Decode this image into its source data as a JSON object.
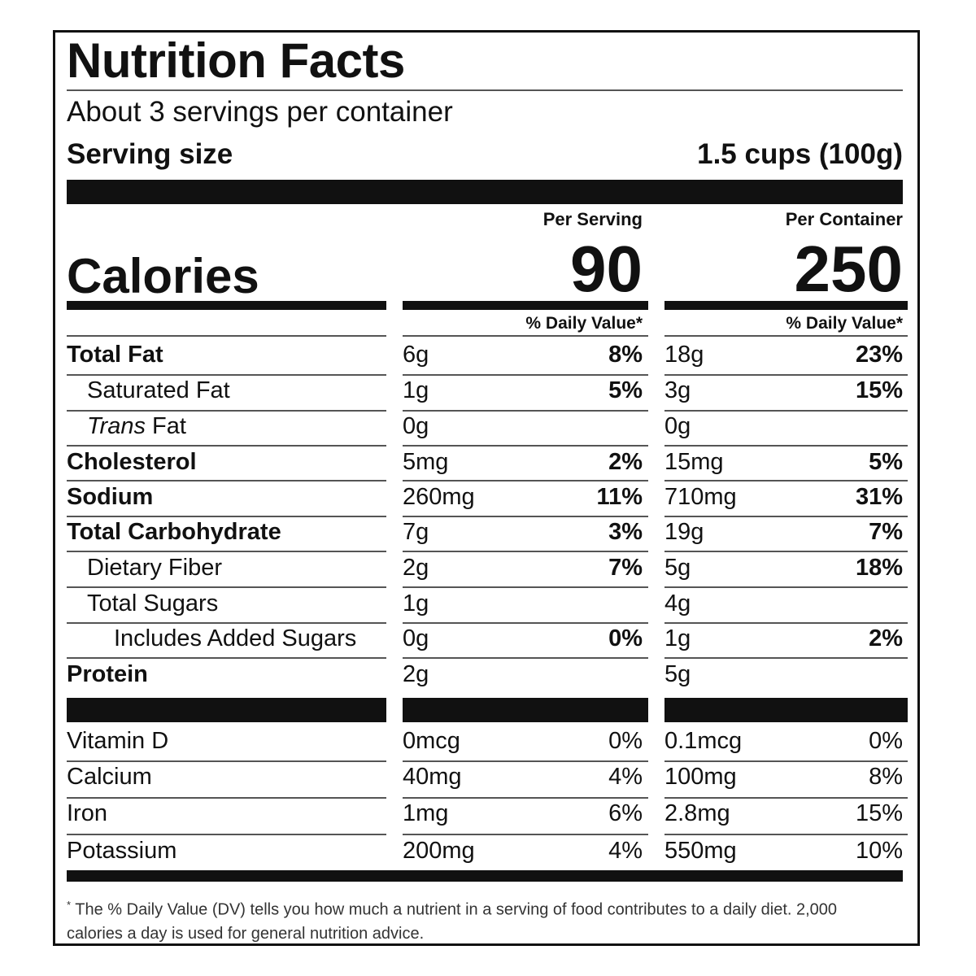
{
  "label": {
    "title": "Nutrition Facts",
    "servings_per_container": "About 3 servings per container",
    "serving_size_label": "Serving size",
    "serving_size_value": "1.5 cups (100g)",
    "columns": [
      {
        "header": "Per Serving",
        "calories": "90",
        "dv_header": "% Daily Value*"
      },
      {
        "header": "Per Container",
        "calories": "250",
        "dv_header": "% Daily Value*"
      }
    ],
    "calories_label": "Calories",
    "nutrients": [
      {
        "name": "Total Fat",
        "bold": true,
        "indent": 0,
        "values": [
          {
            "amount": "6g",
            "pct": "8%"
          },
          {
            "amount": "18g",
            "pct": "23%"
          }
        ]
      },
      {
        "name": "Saturated Fat",
        "bold": false,
        "indent": 1,
        "values": [
          {
            "amount": "1g",
            "pct": "5%"
          },
          {
            "amount": "3g",
            "pct": "15%"
          }
        ]
      },
      {
        "name_italic": "Trans",
        "name": " Fat",
        "bold": false,
        "indent": 1,
        "values": [
          {
            "amount": "0g",
            "pct": ""
          },
          {
            "amount": "0g",
            "pct": ""
          }
        ]
      },
      {
        "name": "Cholesterol",
        "bold": true,
        "indent": 0,
        "values": [
          {
            "amount": "5mg",
            "pct": "2%"
          },
          {
            "amount": "15mg",
            "pct": "5%"
          }
        ]
      },
      {
        "name": "Sodium",
        "bold": true,
        "indent": 0,
        "values": [
          {
            "amount": "260mg",
            "pct": "11%"
          },
          {
            "amount": "710mg",
            "pct": "31%"
          }
        ]
      },
      {
        "name": "Total Carbohydrate",
        "bold": true,
        "indent": 0,
        "values": [
          {
            "amount": "7g",
            "pct": "3%"
          },
          {
            "amount": "19g",
            "pct": "7%"
          }
        ]
      },
      {
        "name": "Dietary Fiber",
        "bold": false,
        "indent": 1,
        "values": [
          {
            "amount": "2g",
            "pct": "7%"
          },
          {
            "amount": "5g",
            "pct": "18%"
          }
        ]
      },
      {
        "name": "Total Sugars",
        "bold": false,
        "indent": 1,
        "values": [
          {
            "amount": "1g",
            "pct": ""
          },
          {
            "amount": "4g",
            "pct": ""
          }
        ]
      },
      {
        "name": "Includes Added Sugars",
        "bold": false,
        "indent": 2,
        "values": [
          {
            "amount": "0g",
            "pct": "0%"
          },
          {
            "amount": "1g",
            "pct": "2%"
          }
        ]
      },
      {
        "name": "Protein",
        "bold": true,
        "indent": 0,
        "values": [
          {
            "amount": "2g",
            "pct": ""
          },
          {
            "amount": "5g",
            "pct": ""
          }
        ]
      }
    ],
    "vitamins": [
      {
        "name": "Vitamin D",
        "values": [
          {
            "amount": "0mcg",
            "pct": "0%"
          },
          {
            "amount": "0.1mcg",
            "pct": "0%"
          }
        ]
      },
      {
        "name": "Calcium",
        "values": [
          {
            "amount": "40mg",
            "pct": "4%"
          },
          {
            "amount": "100mg",
            "pct": "8%"
          }
        ]
      },
      {
        "name": "Iron",
        "values": [
          {
            "amount": "1mg",
            "pct": "6%"
          },
          {
            "amount": "2.8mg",
            "pct": "15%"
          }
        ]
      },
      {
        "name": "Potassium",
        "values": [
          {
            "amount": "200mg",
            "pct": "4%"
          },
          {
            "amount": "550mg",
            "pct": "10%"
          }
        ]
      }
    ],
    "footnote_mark": "*",
    "footnote": "The % Daily Value (DV) tells you how much a nutrient in a serving of food contributes to a daily diet. 2,000 calories a day is used for general nutrition advice."
  }
}
